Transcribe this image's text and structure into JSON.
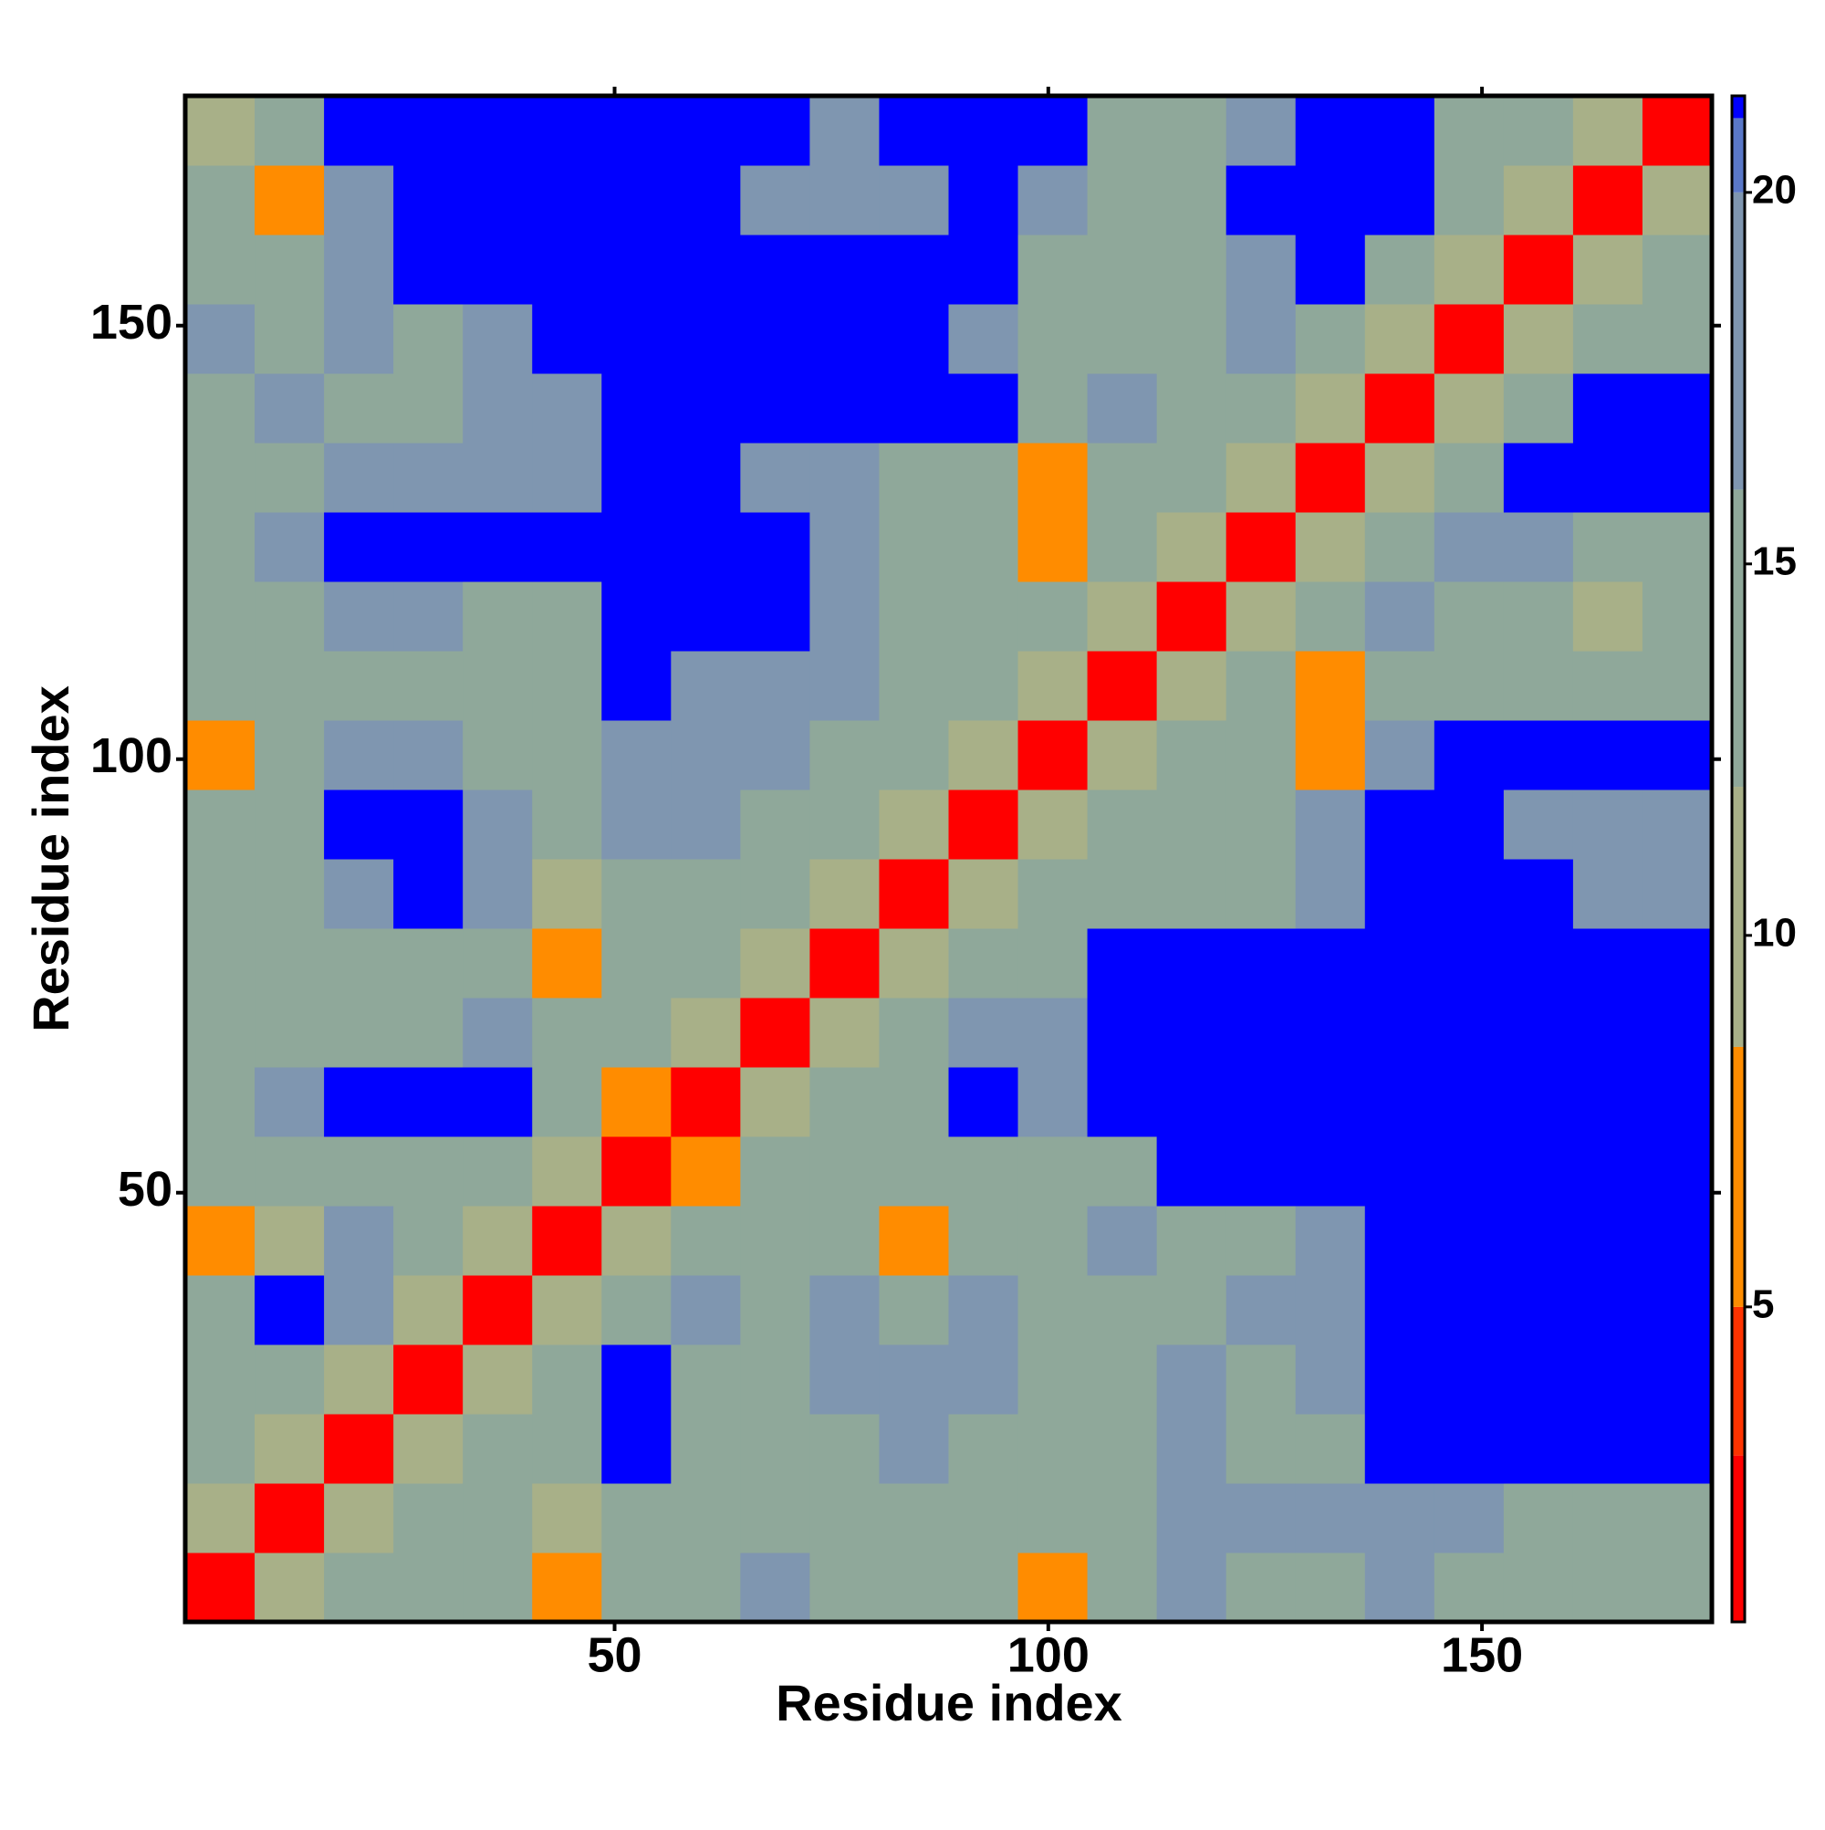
{
  "chart_data": {
    "type": "heatmap",
    "xlabel": "Residue index",
    "ylabel": "Residue index",
    "xbins": [
      0.5,
      8.5,
      16.5,
      24.5,
      32.5,
      40.5,
      48.5,
      56.5,
      64.5,
      72.5,
      80.5,
      88.5,
      96.5,
      104.5,
      112.5,
      120.5,
      128.5,
      136.5,
      144.5,
      152.5,
      160.5,
      168.5,
      176.5
    ],
    "ybins": [
      0.5,
      8.5,
      16.5,
      24.5,
      32.5,
      40.5,
      48.5,
      56.5,
      64.5,
      72.5,
      80.5,
      88.5,
      96.5,
      104.5,
      112.5,
      120.5,
      128.5,
      136.5,
      144.5,
      152.5,
      160.5,
      168.5,
      176.5
    ],
    "xlim": [
      0.5,
      176.5
    ],
    "ylim": [
      0.5,
      176.5
    ],
    "xticks": [
      50,
      100,
      150
    ],
    "yticks": [
      50,
      100,
      150
    ],
    "colorscale": [
      [
        0.76,
        "#ff0000"
      ],
      [
        3,
        "#ff3300"
      ],
      [
        5,
        "#ff8c00"
      ],
      [
        8.5,
        "#a8b088"
      ],
      [
        12,
        "#8fa89a"
      ],
      [
        16,
        "#7f96b0"
      ],
      [
        20,
        "#5a78c8"
      ],
      [
        21,
        "#0000ff"
      ]
    ],
    "colorbar_lim": [
      0.76,
      21.3
    ],
    "colorbar_ticks": [
      5,
      10,
      15,
      20
    ],
    "values": [
      [
        2,
        9,
        12,
        14,
        12,
        7,
        12,
        14,
        17,
        14,
        12,
        12,
        7,
        12,
        17,
        12,
        14,
        17,
        14,
        12,
        12,
        14
      ],
      [
        9,
        2,
        9,
        12,
        14,
        9,
        14,
        12,
        14,
        12,
        14,
        14,
        12,
        14,
        17,
        17,
        17,
        17,
        17,
        14,
        12,
        14
      ],
      [
        12,
        9,
        2,
        9,
        12,
        14,
        21,
        12,
        12,
        14,
        17,
        14,
        12,
        12,
        17,
        14,
        14,
        21,
        21,
        21,
        21,
        21
      ],
      [
        12,
        12,
        9,
        2,
        9,
        12,
        21,
        12,
        12,
        17,
        17,
        17,
        14,
        14,
        17,
        14,
        17,
        21,
        21,
        21,
        21,
        21
      ],
      [
        12,
        21,
        17,
        9,
        2,
        9,
        12,
        17,
        14,
        17,
        14,
        17,
        14,
        12,
        14,
        17,
        17,
        21,
        21,
        21,
        21,
        21
      ],
      [
        7,
        9,
        17,
        12,
        9,
        2,
        9,
        12,
        14,
        12,
        7,
        12,
        12,
        17,
        14,
        14,
        17,
        21,
        21,
        21,
        21,
        21
      ],
      [
        12,
        12,
        14,
        14,
        12,
        9,
        2,
        7,
        12,
        14,
        12,
        14,
        12,
        14,
        21,
        21,
        21,
        21,
        21,
        21,
        21,
        21
      ],
      [
        14,
        17,
        21,
        21,
        21,
        12,
        7,
        2,
        9,
        12,
        14,
        21,
        17,
        21,
        21,
        21,
        21,
        21,
        21,
        21,
        21,
        21
      ],
      [
        12,
        12,
        14,
        12,
        17,
        12,
        12,
        9,
        2,
        9,
        12,
        17,
        17,
        21,
        21,
        21,
        21,
        21,
        21,
        21,
        21,
        21
      ],
      [
        12,
        12,
        12,
        14,
        12,
        7,
        14,
        12,
        9,
        2,
        9,
        12,
        14,
        21,
        21,
        21,
        21,
        21,
        21,
        21,
        21,
        21
      ],
      [
        12,
        12,
        17,
        21,
        17,
        9,
        14,
        14,
        12,
        9,
        2,
        9,
        12,
        14,
        12,
        14,
        17,
        21,
        21,
        21,
        17,
        17
      ],
      [
        12,
        14,
        21,
        21,
        17,
        12,
        17,
        17,
        14,
        12,
        9,
        2,
        9,
        12,
        14,
        12,
        17,
        21,
        21,
        17,
        17,
        17
      ],
      [
        7,
        12,
        17,
        17,
        14,
        12,
        17,
        17,
        17,
        14,
        12,
        9,
        2,
        9,
        12,
        12,
        7,
        17,
        21,
        21,
        21,
        21
      ],
      [
        12,
        12,
        14,
        14,
        12,
        14,
        21,
        17,
        17,
        17,
        14,
        12,
        9,
        2,
        9,
        12,
        7,
        12,
        14,
        12,
        12,
        14
      ],
      [
        14,
        14,
        17,
        17,
        14,
        14,
        21,
        21,
        21,
        17,
        14,
        14,
        12,
        9,
        2,
        9,
        12,
        17,
        12,
        12,
        9,
        12
      ],
      [
        12,
        17,
        21,
        21,
        21,
        21,
        21,
        21,
        21,
        17,
        12,
        12,
        7,
        12,
        9,
        2,
        9,
        14,
        17,
        17,
        14,
        14
      ],
      [
        12,
        14,
        17,
        17,
        17,
        17,
        21,
        21,
        17,
        17,
        14,
        14,
        7,
        12,
        12,
        9,
        2,
        9,
        14,
        21,
        21,
        21
      ],
      [
        14,
        17,
        14,
        14,
        17,
        17,
        21,
        21,
        21,
        21,
        21,
        21,
        12,
        17,
        14,
        14,
        9,
        2,
        9,
        14,
        21,
        21
      ],
      [
        17,
        14,
        17,
        14,
        17,
        21,
        21,
        21,
        21,
        21,
        21,
        17,
        12,
        14,
        14,
        17,
        14,
        9,
        2,
        9,
        12,
        14
      ],
      [
        12,
        12,
        17,
        21,
        21,
        21,
        21,
        21,
        21,
        21,
        21,
        21,
        12,
        12,
        12,
        17,
        21,
        14,
        9,
        2,
        9,
        12
      ],
      [
        12,
        7,
        17,
        21,
        21,
        21,
        21,
        21,
        17,
        17,
        17,
        21,
        17,
        12,
        12,
        21,
        21,
        21,
        12,
        9,
        2,
        9
      ],
      [
        9,
        12,
        21,
        21,
        21,
        21,
        21,
        21,
        21,
        17,
        21,
        21,
        21,
        14,
        12,
        17,
        21,
        21,
        14,
        12,
        9,
        2
      ]
    ]
  }
}
